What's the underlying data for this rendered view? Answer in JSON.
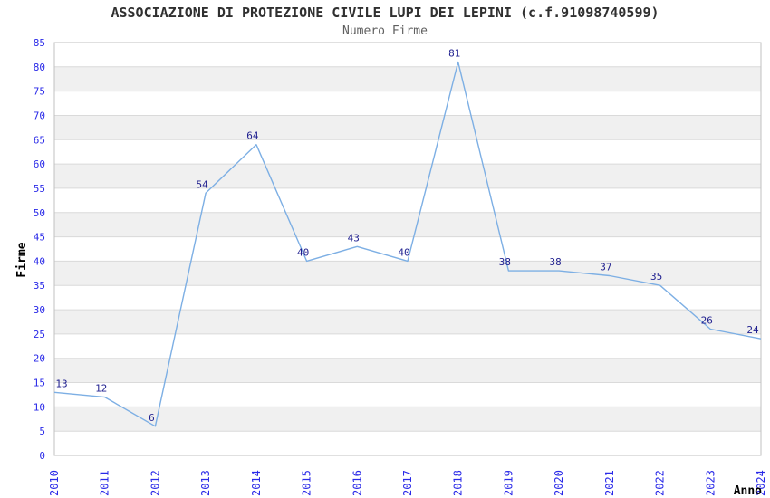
{
  "chart_data": {
    "type": "line",
    "title": "ASSOCIAZIONE DI PROTEZIONE CIVILE LUPI DEI LEPINI (c.f.91098740599)",
    "subtitle": "Numero Firme",
    "xlabel": "Anno",
    "ylabel": "Firme",
    "x": [
      "2010",
      "2011",
      "2012",
      "2013",
      "2014",
      "2015",
      "2016",
      "2017",
      "2018",
      "2019",
      "2020",
      "2021",
      "2022",
      "2023",
      "2024"
    ],
    "values": [
      13,
      12,
      6,
      54,
      64,
      40,
      43,
      40,
      81,
      38,
      38,
      37,
      35,
      26,
      24
    ],
    "ylim": [
      0,
      85
    ],
    "ytick_step": 5,
    "grid": "horizontal-only",
    "alternating_bands": true,
    "legend": "none",
    "colors": {
      "line": "#7dafe4",
      "point_label": "#1f1f8f",
      "tick_label": "#2a2ae8",
      "band": "#f0f0f0",
      "grid": "#dadada",
      "border": "#c0c0c0",
      "title": "#303030",
      "subtitle": "#606060",
      "axis_title": "#000000",
      "background": "#ffffff"
    }
  }
}
